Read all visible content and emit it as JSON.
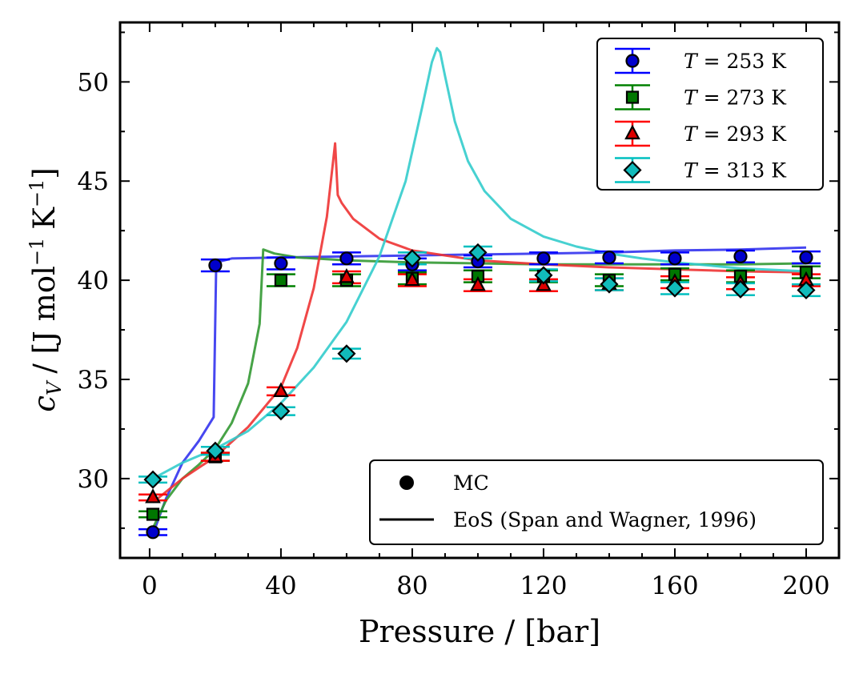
{
  "chart_data": {
    "type": "scatter",
    "title": "",
    "xlabel": "Pressure / [bar]",
    "ylabel": {
      "main": "c",
      "sub": "V",
      "rest": "/ [J mol",
      "sup1": "−1",
      "mid": "K",
      "sup2": "−1",
      "end": "]"
    },
    "xlim": [
      -9,
      210
    ],
    "ylim": [
      26,
      53
    ],
    "xticks": [
      0,
      40,
      80,
      120,
      160,
      200
    ],
    "yticks": [
      30,
      35,
      40,
      45,
      50
    ],
    "grid": false,
    "legend_position": "top-right",
    "series": [
      {
        "name": "253 K",
        "label_prefix": "T",
        "label_rest": " = 253 K",
        "color": "#0000ff",
        "face": "#0000cc",
        "marker": "circle",
        "mc_x": [
          1,
          20,
          40,
          60,
          80,
          100,
          120,
          140,
          160,
          180,
          200
        ],
        "mc_y": [
          27.3,
          40.75,
          40.85,
          41.1,
          40.8,
          40.95,
          41.1,
          41.15,
          41.1,
          41.2,
          41.15
        ],
        "mc_err": [
          0.15,
          0.3,
          0.3,
          0.3,
          0.3,
          0.3,
          0.3,
          0.3,
          0.3,
          0.3,
          0.3
        ],
        "eos_x": [
          1,
          5,
          10,
          15,
          19.5,
          20.3,
          25,
          40,
          60,
          80,
          100,
          120,
          140,
          160,
          180,
          200
        ],
        "eos_y": [
          27.2,
          29.0,
          30.8,
          31.9,
          33.1,
          40.9,
          41.1,
          41.15,
          41.2,
          41.25,
          41.3,
          41.35,
          41.4,
          41.5,
          41.55,
          41.65
        ],
        "eos_color": "#3333ee"
      },
      {
        "name": "273 K",
        "label_prefix": "T",
        "label_rest": " = 273 K",
        "color": "#008000",
        "face": "#007700",
        "marker": "square",
        "mc_x": [
          1,
          20,
          40,
          60,
          80,
          100,
          120,
          140,
          160,
          180,
          200
        ],
        "mc_y": [
          28.2,
          31.1,
          40.0,
          40.0,
          40.1,
          40.2,
          40.2,
          40.0,
          40.3,
          40.2,
          40.4
        ],
        "mc_err": [
          0.15,
          0.2,
          0.3,
          0.3,
          0.3,
          0.3,
          0.3,
          0.3,
          0.3,
          0.3,
          0.3
        ],
        "eos_x": [
          1,
          5,
          10,
          15,
          20,
          25,
          30,
          33.5,
          34.6,
          38,
          45,
          60,
          80,
          100,
          120,
          140,
          160,
          180,
          200
        ],
        "eos_y": [
          27.5,
          28.9,
          30.0,
          30.7,
          31.5,
          32.8,
          34.8,
          37.8,
          41.55,
          41.35,
          41.15,
          41.0,
          40.9,
          40.85,
          40.8,
          40.8,
          40.8,
          40.8,
          40.85
        ],
        "eos_color": "#339933"
      },
      {
        "name": "293 K",
        "label_prefix": "T",
        "label_rest": " = 293 K",
        "color": "#ff0000",
        "face": "#dd0000",
        "marker": "triangle",
        "mc_x": [
          1,
          20,
          40,
          60,
          80,
          100,
          120,
          140,
          160,
          180,
          200
        ],
        "mc_y": [
          29.05,
          31.1,
          34.4,
          40.15,
          40.0,
          39.75,
          39.75,
          39.8,
          39.9,
          39.85,
          40.0
        ],
        "mc_err": [
          0.15,
          0.2,
          0.2,
          0.3,
          0.3,
          0.3,
          0.3,
          0.3,
          0.3,
          0.3,
          0.3
        ],
        "eos_x": [
          1,
          10,
          20,
          30,
          40,
          45,
          50,
          54,
          56.5,
          57.3,
          58.5,
          62,
          70,
          80,
          100,
          120,
          140,
          160,
          180,
          200
        ],
        "eos_y": [
          28.8,
          30.0,
          31.1,
          32.6,
          34.6,
          36.6,
          39.6,
          43.2,
          46.9,
          44.3,
          43.9,
          43.1,
          42.1,
          41.5,
          41.0,
          40.8,
          40.65,
          40.55,
          40.45,
          40.4
        ],
        "eos_color": "#ee3333"
      },
      {
        "name": "313 K",
        "label_prefix": "T",
        "label_rest": " = 313 K",
        "color": "#00bfbf",
        "face": "#11bbbb",
        "marker": "diamond",
        "mc_x": [
          1,
          20,
          40,
          60,
          80,
          100,
          120,
          140,
          160,
          180,
          200
        ],
        "mc_y": [
          29.95,
          31.4,
          33.4,
          36.3,
          41.1,
          41.4,
          40.25,
          39.8,
          39.6,
          39.55,
          39.5
        ],
        "mc_err": [
          0.15,
          0.2,
          0.2,
          0.25,
          0.3,
          0.3,
          0.3,
          0.3,
          0.3,
          0.3,
          0.3
        ],
        "eos_x": [
          1,
          10,
          20,
          30,
          40,
          50,
          60,
          70,
          78,
          83,
          86,
          87.5,
          88.5,
          90,
          93,
          97,
          102,
          110,
          120,
          130,
          140,
          150,
          160,
          180,
          200
        ],
        "eos_y": [
          30.0,
          30.8,
          31.5,
          32.4,
          33.8,
          35.6,
          37.9,
          41.2,
          45.0,
          48.7,
          51.0,
          51.7,
          51.5,
          50.3,
          48.0,
          46.0,
          44.5,
          43.1,
          42.2,
          41.7,
          41.35,
          41.1,
          40.9,
          40.6,
          40.45
        ],
        "eos_color": "#33cccc"
      }
    ],
    "style_legend": [
      {
        "label": "MC",
        "symbol": "dot"
      },
      {
        "label": "EoS (Span and Wagner, 1996)",
        "symbol": "line"
      }
    ]
  }
}
